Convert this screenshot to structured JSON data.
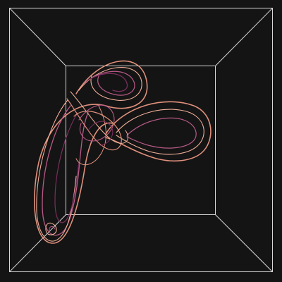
{
  "viewer": {
    "background_color": "#141414",
    "box_color": "#d8d8d8",
    "curve_colors": {
      "outer": "#e0907c",
      "inner": "#b85a86",
      "highlight": "#f2b09a",
      "deep": "#7a2f5e"
    }
  }
}
